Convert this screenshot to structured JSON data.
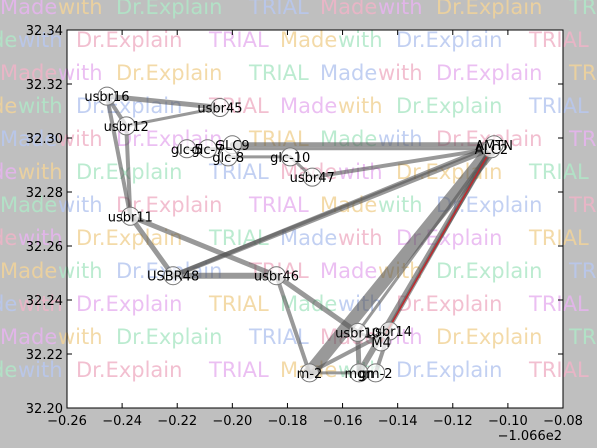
{
  "chart_data": {
    "type": "scatter",
    "title": "",
    "xlabel": "",
    "ylabel": "",
    "xlim": [
      -0.26,
      -0.08
    ],
    "ylim": [
      32.2,
      32.34
    ],
    "x_offset_label": "−1.066e2",
    "x_ticks": [
      "−0.26",
      "−0.24",
      "−0.22",
      "−0.20",
      "−0.18",
      "−0.16",
      "−0.14",
      "−0.12",
      "−0.10",
      "−0.08"
    ],
    "x_tick_values": [
      -0.26,
      -0.24,
      -0.22,
      -0.2,
      -0.18,
      -0.16,
      -0.14,
      -0.12,
      -0.1,
      -0.08
    ],
    "y_ticks": [
      "32.20",
      "32.22",
      "32.24",
      "32.26",
      "32.28",
      "32.30",
      "32.32",
      "32.34"
    ],
    "y_tick_values": [
      32.2,
      32.22,
      32.24,
      32.26,
      32.28,
      32.3,
      32.32,
      32.34
    ],
    "grid": false,
    "nodes": [
      {
        "id": "usbr16",
        "label": "usbr16",
        "x": -0.2455,
        "y": 32.3155
      },
      {
        "id": "usbr45",
        "label": "usbr45",
        "x": -0.2045,
        "y": 32.3113
      },
      {
        "id": "usbr12",
        "label": "usbr12",
        "x": -0.2385,
        "y": 32.3045
      },
      {
        "id": "glc5",
        "label": "glc-5",
        "x": -0.2165,
        "y": 32.296
      },
      {
        "id": "glc7",
        "label": "glc-7",
        "x": -0.209,
        "y": 32.296
      },
      {
        "id": "glc9",
        "label": "GLC9",
        "x": -0.2,
        "y": 32.2975
      },
      {
        "id": "glc8",
        "label": "glc-8",
        "x": -0.2015,
        "y": 32.293
      },
      {
        "id": "glc10",
        "label": "glc-10",
        "x": -0.179,
        "y": 32.293
      },
      {
        "id": "usbr47",
        "label": "usbr47",
        "x": -0.171,
        "y": 32.2855
      },
      {
        "id": "amtn",
        "label": "AMTN",
        "x": -0.105,
        "y": 32.2975
      },
      {
        "id": "alc2",
        "label": "ALC2",
        "x": -0.106,
        "y": 32.296
      },
      {
        "id": "usbr11",
        "label": "usbr11",
        "x": -0.237,
        "y": 32.271
      },
      {
        "id": "usbr48",
        "label": "USBR48",
        "x": -0.2215,
        "y": 32.249
      },
      {
        "id": "usbr46",
        "label": "usbr46",
        "x": -0.184,
        "y": 32.249
      },
      {
        "id": "usbr14",
        "label": "usbr14",
        "x": -0.143,
        "y": 32.2285
      },
      {
        "id": "usbr10",
        "label": "usbr10",
        "x": -0.1545,
        "y": 32.228
      },
      {
        "id": "m4",
        "label": "M4",
        "x": -0.146,
        "y": 32.2245
      },
      {
        "id": "m2",
        "label": "m-2",
        "x": -0.172,
        "y": 32.213
      },
      {
        "id": "mgn",
        "label": "mgn",
        "x": -0.154,
        "y": 32.213
      },
      {
        "id": "gm2",
        "label": "gm-2",
        "x": -0.148,
        "y": 32.213
      }
    ],
    "edges": [
      {
        "from": "usbr16",
        "to": "usbr45",
        "weight": 5
      },
      {
        "from": "usbr16",
        "to": "usbr12",
        "weight": 4
      },
      {
        "from": "usbr12",
        "to": "usbr45",
        "weight": 3
      },
      {
        "from": "usbr16",
        "to": "usbr11",
        "weight": 4
      },
      {
        "from": "usbr12",
        "to": "usbr11",
        "weight": 4
      },
      {
        "from": "usbr11",
        "to": "usbr48",
        "weight": 5
      },
      {
        "from": "usbr11",
        "to": "usbr46",
        "weight": 5
      },
      {
        "from": "usbr48",
        "to": "usbr46",
        "weight": 6
      },
      {
        "from": "usbr48",
        "to": "alc2",
        "weight": 5
      },
      {
        "from": "usbr48",
        "to": "amtn",
        "weight": 4
      },
      {
        "from": "usbr46",
        "to": "m2",
        "weight": 4
      },
      {
        "from": "usbr46",
        "to": "usbr10",
        "weight": 5
      },
      {
        "from": "glc9",
        "to": "amtn",
        "weight": 5
      },
      {
        "from": "glc5",
        "to": "alc2",
        "weight": 3
      },
      {
        "from": "glc8",
        "to": "glc10",
        "weight": 3
      },
      {
        "from": "usbr47",
        "to": "alc2",
        "weight": 4
      },
      {
        "from": "glc10",
        "to": "usbr47",
        "weight": 3
      },
      {
        "from": "m2",
        "to": "alc2",
        "weight": 13
      },
      {
        "from": "mgn",
        "to": "alc2",
        "weight": 6
      },
      {
        "from": "m4",
        "to": "alc2",
        "weight": 4
      },
      {
        "from": "usbr10",
        "to": "alc2",
        "weight": 3
      },
      {
        "from": "m2",
        "to": "usbr14",
        "weight": 4
      },
      {
        "from": "mgn",
        "to": "usbr10",
        "weight": 5
      },
      {
        "from": "gm2",
        "to": "usbr14",
        "weight": 4
      },
      {
        "from": "usbr10",
        "to": "m4",
        "weight": 3
      },
      {
        "from": "m2",
        "to": "mgn",
        "weight": 3
      }
    ],
    "highlight_edges": [
      {
        "from": "m4",
        "to": "alc2",
        "color": "#c0282c"
      }
    ]
  },
  "watermark": {
    "text_parts": [
      "Made",
      "with",
      "Dr.Explain",
      "TRIAL"
    ],
    "colors": [
      "#e8b4f0",
      "#f2d49a",
      "#b0e8c8",
      "#b8c8f0",
      "#f0b4c8"
    ]
  },
  "colors": {
    "edge": "#555555",
    "node_fill": "#ffffff",
    "node_stroke": "#777777",
    "axes_bg": "#ffffff",
    "figure_bg": "#bfbfbf"
  }
}
